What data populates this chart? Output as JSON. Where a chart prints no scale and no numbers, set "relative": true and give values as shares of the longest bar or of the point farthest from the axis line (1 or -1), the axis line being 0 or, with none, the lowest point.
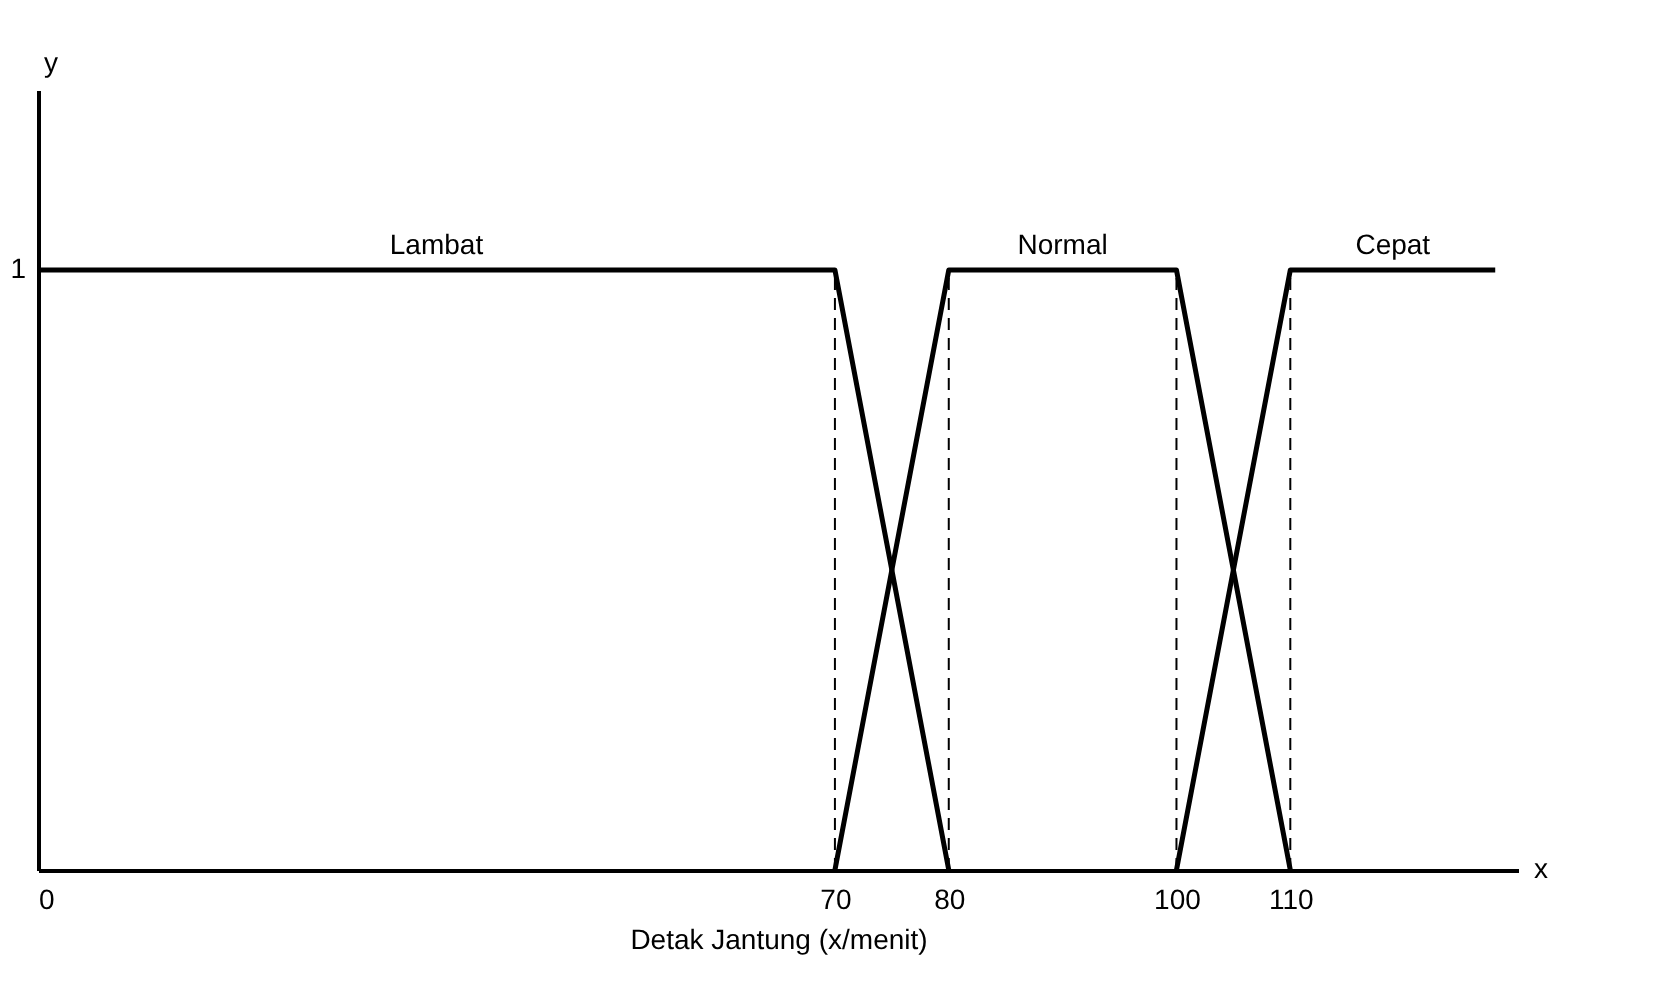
{
  "chart_data": {
    "type": "line",
    "xlabel": "Detak Jantung (x/menit)",
    "relative": true,
    "annotations": [
      "x",
      "y",
      {
        "text": "1",
        "x": 0,
        "y": 1
      }
    ],
    "xlim": [
      0,
      130
    ],
    "xticks": [
      0,
      70,
      80,
      100,
      110
    ],
    "series": [
      {
        "name": "Lambat",
        "color": "#000000",
        "x": [
          0,
          70,
          80
        ],
        "values": [
          1,
          1,
          0
        ]
      },
      {
        "name": "Normal",
        "color": "#000000",
        "x": [
          70,
          80,
          100,
          110
        ],
        "values": [
          0,
          1,
          1,
          0
        ]
      },
      {
        "name": "Cepat",
        "color": "#000000",
        "x": [
          100,
          110,
          128
        ],
        "values": [
          0,
          1,
          1
        ]
      }
    ],
    "ref_lines": [
      {
        "axis": "x",
        "value": 70,
        "line_style": "dashed",
        "color": "#000000"
      },
      {
        "axis": "x",
        "value": 80,
        "line_style": "dashed",
        "color": "#000000"
      },
      {
        "axis": "x",
        "value": 100,
        "line_style": "dashed",
        "color": "#000000"
      },
      {
        "axis": "x",
        "value": 110,
        "line_style": "dashed",
        "color": "#000000"
      }
    ],
    "marker": "none",
    "line_style": "solid",
    "grid": false
  }
}
